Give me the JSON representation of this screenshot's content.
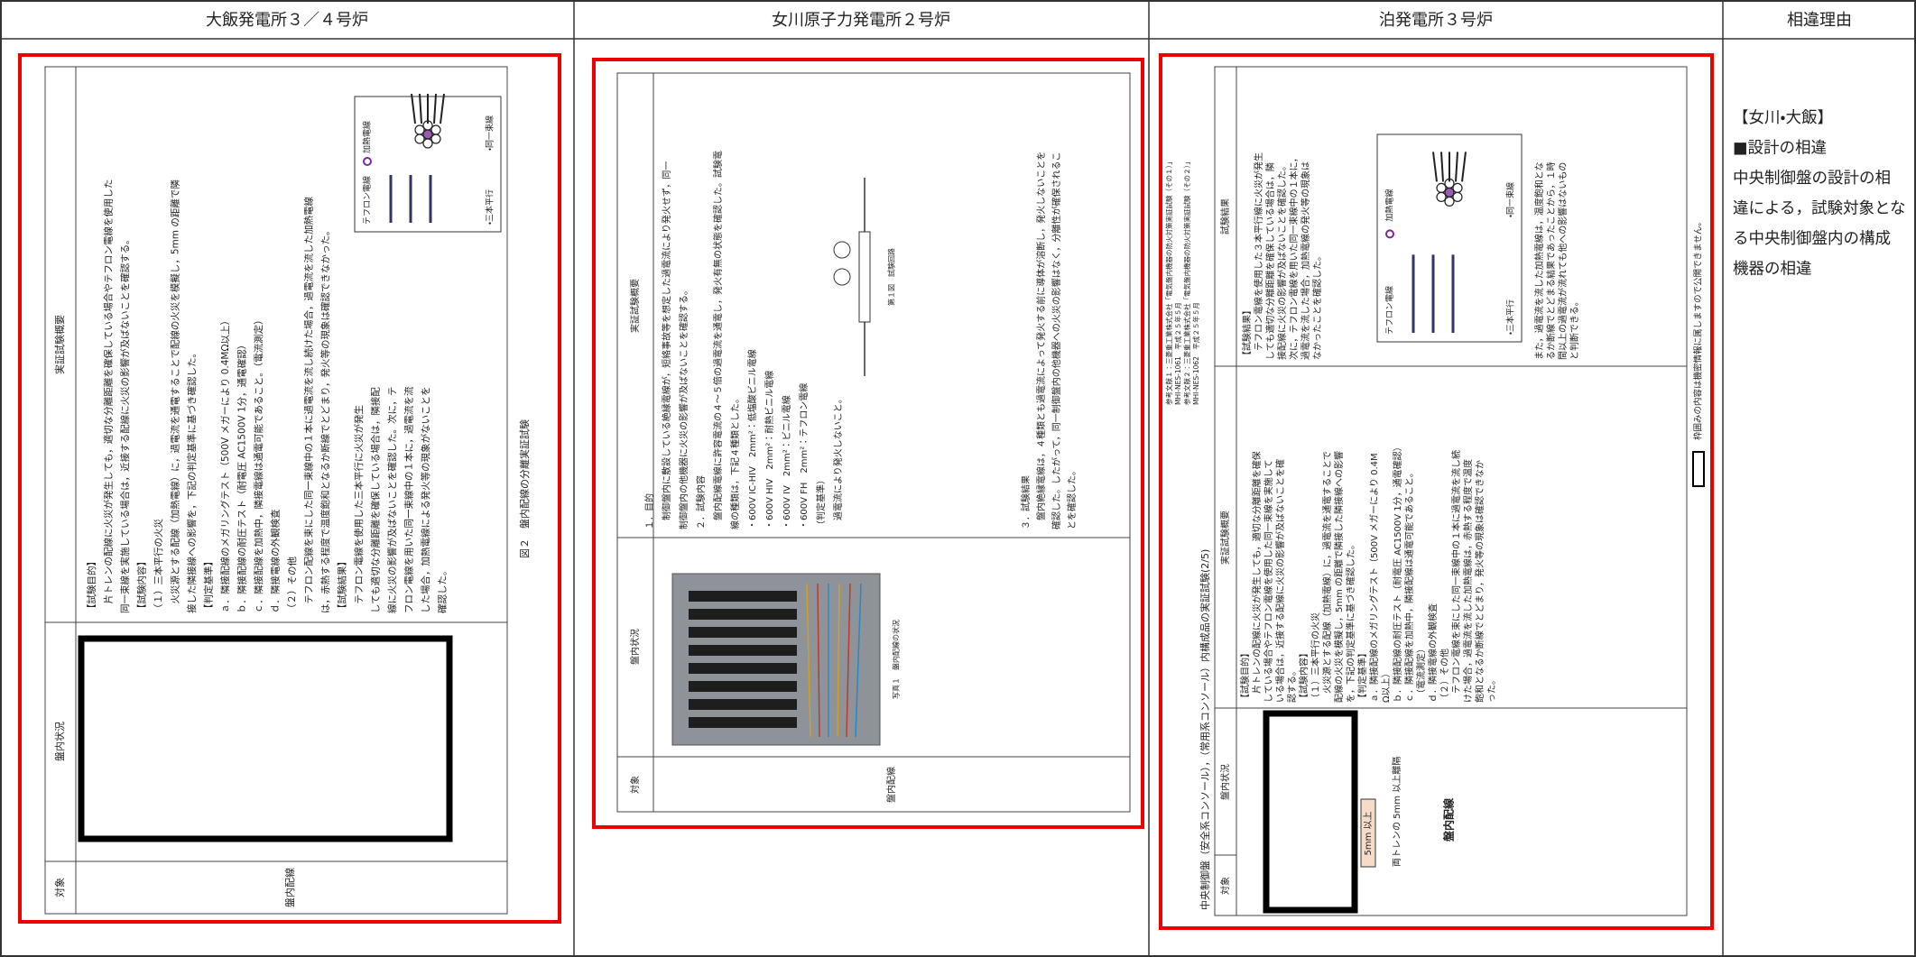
{
  "header": [
    "大飯発電所３／４号炉",
    "女川原子力発電所２号炉",
    "泊発電所３号炉",
    "相違理由"
  ],
  "ohi": {
    "table_header": [
      "対象",
      "盤内状況",
      "実証試験概要"
    ],
    "object": "盤内配線",
    "lines": [
      "【試験目的】",
      "　片トレンの配線に火災が発生しても，適切な分離距離を確保している場合やテフロン電線を使用した",
      "同一束線を実施している場合は，近接する配線に火災の影響が及ばないことを確認する。",
      "【試験内容】",
      "（１）三本平行の火災",
      "　火災源とする配線（加熱電線）に，過電流を通電することで配線の火災を模擬し，5mm の距離で隣",
      "接した隣接線への影響を，下記の判定基準に基づき確認した。",
      "【判定基準】",
      "ａ．隣接配線のメガリングテスト（500V メガーにより 0.4MΩ以上）",
      "ｂ．隣接配線の耐圧テスト（耐電圧 AC1500V 1分，通電確認）",
      "ｃ．隣接配線を加熱中，隣接電線は通電可能であること。（電流測定）",
      "ｄ．隣接電線の外観検査",
      "（２）その他",
      "　テフロン配線を束にした同一束線中の１本に過電流を流し続けた場合，過電流を流した加熱電線",
      "は，赤熱する程度で温度飽和となるか断線でとどまり，発火等の現象は確認できなかった。",
      "【試験結果】",
      "　テフロン電線を使用した三本平行に火災が発生",
      "しても適切な分離距離を確保している場合は，隣接配",
      "線に火災の影響が及ばないことを確認した。次に，テ",
      "フロン電線を用いた同一束線中の１本に，過電流を流",
      "した場合，加熱電線による発火等の現象がないことを",
      "確認した。"
    ],
    "legend": [
      "テフロン電線",
      "加熱電線",
      "・三本平行",
      "・同一束線"
    ],
    "caption": "図２　盤内配線の分離実証試験"
  },
  "onagawa": {
    "table_header": [
      "対象",
      "盤内状況",
      "実証試験概要"
    ],
    "object": "盤内配線",
    "lines": [
      "１．目的",
      "　制御盤内に敷設している絶縁電線が，短絡事故等を想定した過電流により発火せず，同一",
      "制御盤内の他機器に火災の影響が及ばないことを確認する。",
      "２．試験内容",
      "　盤内配線電線に許容電流の４～５倍の過電流を通電し，発火有無の状態を確認した。試験電",
      "線の種類は，下記４種類とした。",
      "・600V IC-HIV　2mm²：低塩酸ビニル電線",
      "・600V HIV　2mm²：耐熱ビニル電線",
      "・600V IV　2mm²：ビニル電線",
      "・600V FH　2mm²：テフロン電線",
      "（判定基準）",
      "　過電流により発火しないこと。",
      "３．試験結果",
      "　盤内絶縁電線は，４種類とも過電流によって発火する前に導体が溶断し，発火しないことを",
      "確認した。したがって，同一制御盤内の他機器への火災の影響はなく，分離性が確保されるこ",
      "とを確認した。"
    ],
    "photo_caption": "写真１　盤内配線の状況",
    "figure_caption": "第１図　試験回路"
  },
  "tomari": {
    "title": "中央制御盤（安全系コンソール），（常用系コンソール）内構成品の実証試験(2/5)",
    "references": [
      "参考文献１：三菱重工業株式会社「電気盤内機器の防火対策実証試験（その１）」",
      "MHI-NES-1061　平成２５年５月",
      "参考文献２：三菱重工業株式会社「電気盤内機器の防火対策実証試験（その２）」",
      "MHI-NES-1062　平成２５年５月"
    ],
    "table_header": [
      "対象",
      "盤内状況",
      "実証試験概要",
      "試験結果"
    ],
    "object": "盤内配線",
    "dimension_label": "5mm 以上",
    "separation_note": "両トレンの 5mm 以上離隔",
    "overview_lines": [
      "【試験目的】",
      "　片トレンの配線に火災が発生しても，適切な分離距離を確保",
      "している場合やテフロン電線を使用した同一束線を実施して",
      "いる場合は，近接する配線に火災の影響が及ばないことを確",
      "認する。",
      "【試験内容】",
      "（１）三本平行の火災",
      "　火災源とする配線（加熱電線）に，過電流を通電することで",
      "配線の火災を模擬し，5mm の距離で隣接した隣接線への影響",
      "を，下記の判定基準に基づき確認した。",
      "【判定基準】",
      "ａ．隣接配線のメガリングテスト（500V メガーにより 0.4M",
      "Ω以上）",
      "ｂ．隣接配線の耐圧テスト（耐電圧 AC1500V 1分，通電確認）",
      "ｃ．隣接配線を加熱中，隣接配線は通電可能であること。",
      "　（電流測定）",
      "ｄ．隣接電線の外観検査",
      "（２）その他",
      "　テフロン電線を束にした同一束線中の１本に過電流を流し続",
      "けた場合，過電流を流した加熱電線は，赤熱する程度で温度",
      "飽和となるか断線でとどまり，発火等の現象は確認できなか",
      "った。"
    ],
    "result_lines": [
      "【試験結果】",
      "　テフロン電線を使用した３本平行線に火災が発生",
      "しても適切な分離距離を確保している場合は，隣",
      "接配線に火災の影響が及ばないことを確認した。",
      "次に，テフロン電線を用いた同一束線中の１本に，",
      "過電流を流した場合，加熱電線の発火等の現象は",
      "なかったことを確認した。"
    ],
    "result_note_lines": [
      "また，過電流を流した加熱電線は，温度飽和とな",
      "るか断線でとどまる結果であったことから，１時",
      "間以上の過電流が流れても他への影響はないもの",
      "と判断できる。"
    ],
    "legend": [
      "テフロン電線",
      "加熱電線",
      "・三本平行",
      "・同一束線"
    ],
    "confidentiality_note": "枠囲みの内容は機密情報に属しますので公開できません。"
  },
  "reason": {
    "lines": [
      "【女川・大飯】",
      "■設計の相違",
      "中央制御盤の設計の相",
      "違による，試験対象とな",
      "る中央制御盤内の構成",
      "機器の相違"
    ]
  }
}
